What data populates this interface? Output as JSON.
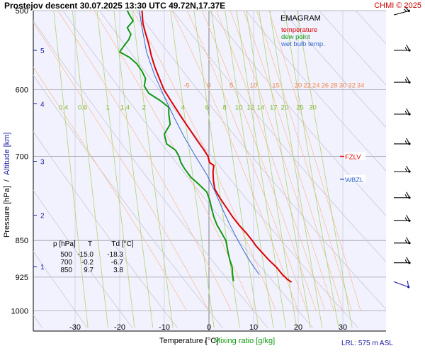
{
  "header": {
    "title": "Prostejov   descent   30.07.2025 13:30 UTC   49.72N,17.37E",
    "credit": "CHMI © 2025"
  },
  "chart_data": {
    "type": "line",
    "diagram": "EMAGRAM",
    "xlabel": "Temperature [°C]",
    "xlabel_separator": "/",
    "xlabel2": "Mixing ratio [g/kg]",
    "ylabel": "Pressure [hPa]",
    "ylabel_separator": "/",
    "ylabel2": "Altitude [km]",
    "x_range": [
      -40,
      40
    ],
    "pressure_range": [
      500,
      1000
    ],
    "pressure_scale": "log",
    "x_ticks": [
      -30,
      -20,
      -10,
      0,
      10,
      20,
      30
    ],
    "pressure_ticks": [
      500,
      600,
      700,
      850,
      925,
      1000
    ],
    "altitude_ticks": [
      {
        "km": 5,
        "p": 548
      },
      {
        "km": 4,
        "p": 620
      },
      {
        "km": 3,
        "p": 708
      },
      {
        "km": 2,
        "p": 802
      },
      {
        "km": 1,
        "p": 903
      }
    ],
    "legend": {
      "title": "EMAGRAM",
      "items": [
        {
          "label": "temperature",
          "color": "#dd0000"
        },
        {
          "label": "dew point",
          "color": "#119911"
        },
        {
          "label": "wet bulb temp.",
          "color": "#3366cc"
        }
      ]
    },
    "isotherm_labels": [
      {
        "t": -5,
        "label": "-5"
      },
      {
        "t": 0,
        "label": "0"
      },
      {
        "t": 5,
        "label": "5"
      },
      {
        "t": 10,
        "label": "10"
      },
      {
        "t": 15,
        "label": "15"
      },
      {
        "t": 20,
        "label": "20"
      },
      {
        "t": 22,
        "label": "22"
      },
      {
        "t": 24,
        "label": "24"
      },
      {
        "t": 26,
        "label": "26"
      },
      {
        "t": 28,
        "label": "28"
      },
      {
        "t": 30,
        "label": "30"
      },
      {
        "t": 32,
        "label": "32"
      },
      {
        "t": 34,
        "label": "34"
      }
    ],
    "mixing_ratio_labels": [
      "0.4",
      "0.6",
      "1",
      "1.4",
      "2",
      "4",
      "6",
      "8",
      "10",
      "12",
      "14",
      "17",
      "20",
      "25",
      "30"
    ],
    "mixing_ratios": [
      0.4,
      0.6,
      1,
      1.4,
      2,
      4,
      6,
      8,
      10,
      12,
      14,
      17,
      20,
      25,
      30
    ],
    "levels": [
      {
        "label": "FZLV",
        "p": 700,
        "color": "#dd0000"
      },
      {
        "label": "WBZL",
        "p": 738,
        "color": "#3366cc"
      }
    ],
    "series": [
      {
        "name": "temperature",
        "color": "#dd0000",
        "points": [
          [
            936,
            18.5
          ],
          [
            930,
            17.6
          ],
          [
            920,
            16.5
          ],
          [
            905,
            15.2
          ],
          [
            890,
            13.5
          ],
          [
            875,
            12.0
          ],
          [
            860,
            10.5
          ],
          [
            850,
            9.7
          ],
          [
            835,
            8.3
          ],
          [
            820,
            6.7
          ],
          [
            805,
            5.3
          ],
          [
            790,
            4.1
          ],
          [
            770,
            2.4
          ],
          [
            755,
            1.3
          ],
          [
            740,
            1.0
          ],
          [
            725,
            0.9
          ],
          [
            715,
            1.1
          ],
          [
            710,
            0.1
          ],
          [
            700,
            -0.2
          ],
          [
            690,
            -1.1
          ],
          [
            675,
            -2.6
          ],
          [
            660,
            -4.1
          ],
          [
            645,
            -5.6
          ],
          [
            630,
            -7.1
          ],
          [
            615,
            -8.6
          ],
          [
            600,
            -10.1
          ],
          [
            585,
            -11.1
          ],
          [
            570,
            -12.1
          ],
          [
            555,
            -12.9
          ],
          [
            540,
            -13.5
          ],
          [
            525,
            -14.3
          ],
          [
            515,
            -14.8
          ],
          [
            500,
            -15.0
          ]
        ]
      },
      {
        "name": "dew point",
        "color": "#119911",
        "points": [
          [
            934,
            5.5
          ],
          [
            920,
            5.3
          ],
          [
            905,
            5.2
          ],
          [
            890,
            4.7
          ],
          [
            875,
            4.3
          ],
          [
            860,
            4.0
          ],
          [
            850,
            3.8
          ],
          [
            835,
            2.8
          ],
          [
            820,
            1.8
          ],
          [
            805,
            1.1
          ],
          [
            790,
            0.6
          ],
          [
            775,
            0.2
          ],
          [
            760,
            -0.5
          ],
          [
            745,
            -2.5
          ],
          [
            735,
            -4.0
          ],
          [
            720,
            -5.5
          ],
          [
            710,
            -6.3
          ],
          [
            700,
            -6.7
          ],
          [
            690,
            -7.5
          ],
          [
            680,
            -9.5
          ],
          [
            665,
            -10.0
          ],
          [
            650,
            -8.7
          ],
          [
            635,
            -9.0
          ],
          [
            625,
            -9.0
          ],
          [
            615,
            -11.0
          ],
          [
            605,
            -13.5
          ],
          [
            595,
            -14.5
          ],
          [
            585,
            -14.2
          ],
          [
            575,
            -15.0
          ],
          [
            565,
            -16.2
          ],
          [
            557,
            -17.8
          ],
          [
            550,
            -20.0
          ],
          [
            542,
            -19.0
          ],
          [
            535,
            -18.0
          ],
          [
            528,
            -17.5
          ],
          [
            520,
            -18.3
          ],
          [
            512,
            -17.0
          ],
          [
            505,
            -17.8
          ],
          [
            500,
            -18.3
          ]
        ]
      },
      {
        "name": "wet bulb temp.",
        "color": "#3366cc",
        "points": [
          [
            920,
            11.3
          ],
          [
            900,
            9.8
          ],
          [
            880,
            8.4
          ],
          [
            850,
            6.5
          ],
          [
            820,
            4.7
          ],
          [
            790,
            3.0
          ],
          [
            760,
            1.4
          ],
          [
            730,
            -0.5
          ],
          [
            700,
            -3.0
          ],
          [
            670,
            -5.5
          ],
          [
            640,
            -7.8
          ],
          [
            610,
            -10.0
          ],
          [
            580,
            -12.2
          ],
          [
            550,
            -14.0
          ],
          [
            520,
            -15.0
          ],
          [
            500,
            -15.6
          ]
        ]
      }
    ],
    "wind_barbs": [
      {
        "p": 505,
        "dir": 285,
        "kt": 15
      },
      {
        "p": 548,
        "dir": 270,
        "kt": 15
      },
      {
        "p": 590,
        "dir": 270,
        "kt": 15
      },
      {
        "p": 635,
        "dir": 270,
        "kt": 15
      },
      {
        "p": 680,
        "dir": 270,
        "kt": 15
      },
      {
        "p": 725,
        "dir": 270,
        "kt": 15
      },
      {
        "p": 770,
        "dir": 270,
        "kt": 15
      },
      {
        "p": 812,
        "dir": 270,
        "kt": 15
      },
      {
        "p": 855,
        "dir": 270,
        "kt": 15
      },
      {
        "p": 895,
        "dir": 270,
        "kt": 15
      },
      {
        "p": 935,
        "dir": 250,
        "kt": 10
      }
    ],
    "table": {
      "headers": [
        "p [hPa]",
        "T",
        "Td [°C]"
      ],
      "rows": [
        [
          "500",
          "-15.0",
          "-18.3"
        ],
        [
          "700",
          "-0.2",
          "-6.7"
        ],
        [
          "850",
          "9.7",
          "3.8"
        ]
      ]
    },
    "lrl": "LRL: 575 m ASL"
  }
}
